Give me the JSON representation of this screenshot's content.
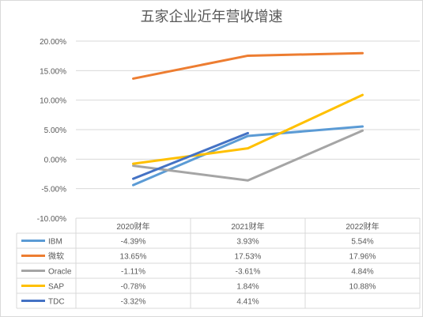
{
  "chart_data": {
    "type": "line",
    "title": "五家企业近年营收增速",
    "categories": [
      "2020财年",
      "2021财年",
      "2022财年"
    ],
    "y_ticks": [
      "20.00%",
      "15.00%",
      "10.00%",
      "5.00%",
      "0.00%",
      "-5.00%",
      "-10.00%"
    ],
    "ylim": [
      -10,
      20
    ],
    "grid": true,
    "legend_position": "data-table",
    "series": [
      {
        "name": "IBM",
        "color": "#5b9bd5",
        "values": [
          -4.39,
          3.93,
          5.54
        ],
        "labels": [
          "-4.39%",
          "3.93%",
          "5.54%"
        ]
      },
      {
        "name": "微软",
        "color": "#ed7d31",
        "values": [
          13.65,
          17.53,
          17.96
        ],
        "labels": [
          "13.65%",
          "17.53%",
          "17.96%"
        ]
      },
      {
        "name": "Oracle",
        "color": "#a5a5a5",
        "values": [
          -1.11,
          -3.61,
          4.84
        ],
        "labels": [
          "-1.11%",
          "-3.61%",
          "4.84%"
        ]
      },
      {
        "name": "SAP",
        "color": "#ffc000",
        "values": [
          -0.78,
          1.84,
          10.88
        ],
        "labels": [
          "-0.78%",
          "1.84%",
          "10.88%"
        ]
      },
      {
        "name": "TDC",
        "color": "#4472c4",
        "values": [
          -3.32,
          4.41,
          null
        ],
        "labels": [
          "-3.32%",
          "4.41%",
          ""
        ]
      }
    ]
  }
}
